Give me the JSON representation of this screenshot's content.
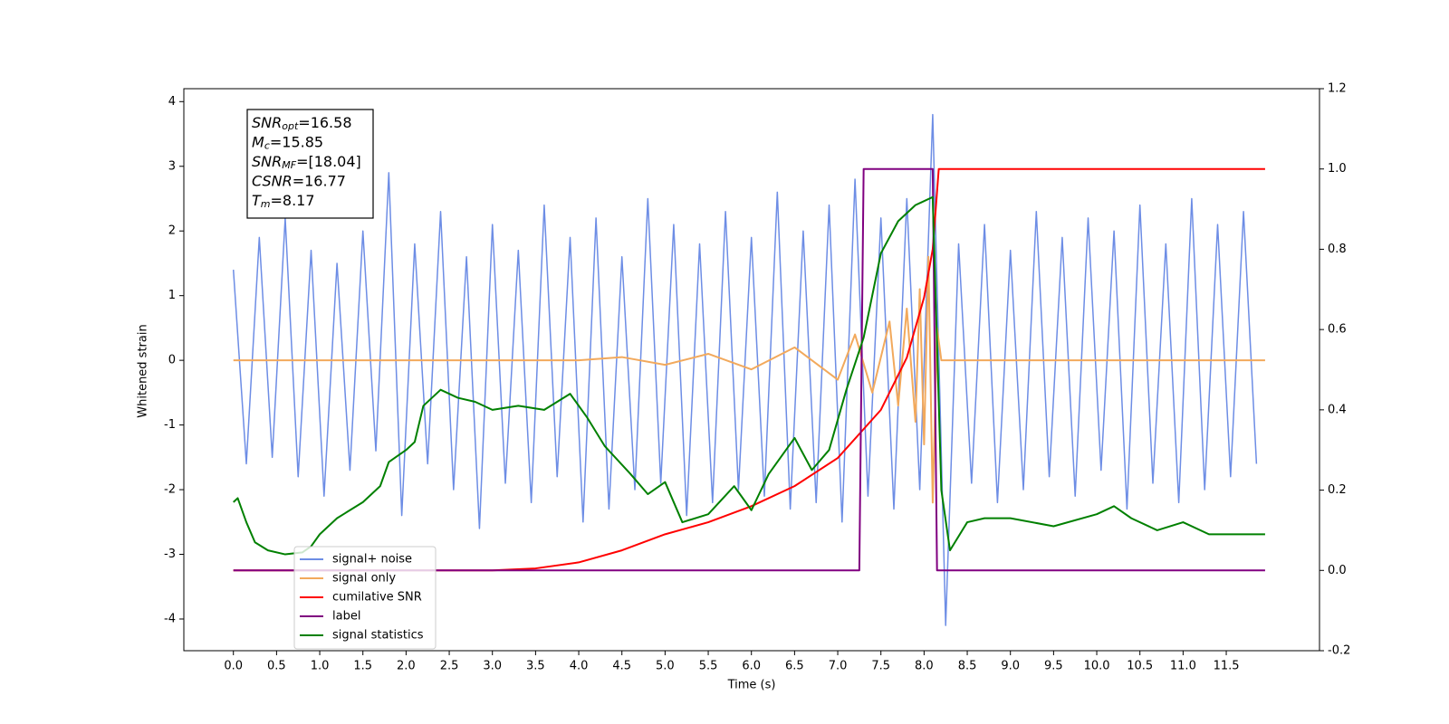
{
  "chart_data": {
    "type": "line",
    "xlabel": "Time (s)",
    "ylabel": "Whitened strain",
    "xlim": [
      -0.574,
      12.58
    ],
    "ylim": [
      -4.49,
      4.2
    ],
    "y2lim": [
      -0.2,
      1.2
    ],
    "xticks": [
      {
        "value": 0,
        "label": "0.0"
      },
      0.5,
      {
        "value": 1,
        "label": "1.0"
      },
      1.5,
      {
        "value": 2,
        "label": "2.0"
      },
      2.5,
      {
        "value": 3,
        "label": "3.0"
      },
      3.5,
      {
        "value": 4,
        "label": "4.0"
      },
      4.5,
      {
        "value": 5,
        "label": "5.0"
      },
      5.5,
      {
        "value": 6,
        "label": "6.0"
      },
      6.5,
      {
        "value": 7,
        "label": "7.0"
      },
      7.5,
      {
        "value": 8,
        "label": "8.0"
      },
      8.5,
      {
        "value": 9,
        "label": "9.0"
      },
      9.5,
      {
        "value": 10,
        "label": "10.0"
      },
      10.5,
      {
        "value": 11,
        "label": "11.0"
      },
      11.5
    ],
    "yticks": [
      -4,
      -3,
      -2,
      -1,
      0,
      1,
      2,
      3,
      4
    ],
    "y2ticks": [
      -0.2,
      {
        "value": 0,
        "label": "0.0"
      },
      0.2,
      0.4,
      0.6,
      0.8,
      {
        "value": 1,
        "label": "1.0"
      },
      1.2
    ],
    "legend_loc": "lower left",
    "annotations": [
      {
        "symbol": "SNR",
        "subscript": "opt",
        "text": "=16.58"
      },
      {
        "symbol": "M",
        "subscript": "c",
        "text": "=15.85"
      },
      {
        "symbol": "SNR",
        "subscript": "MF",
        "text": "=[18.04]"
      },
      {
        "symbol": "CSNR",
        "text": "=16.77"
      },
      {
        "symbol": "T",
        "subscript": "m",
        "text": "=8.17"
      }
    ],
    "series": [
      {
        "name": "signal+ noise",
        "color": "#6d8de5",
        "x": [
          0,
          0.15,
          0.3,
          0.45,
          0.6,
          0.75,
          0.9,
          1.05,
          1.2,
          1.35,
          1.5,
          1.65,
          1.8,
          1.95,
          2.1,
          2.25,
          2.4,
          2.55,
          2.7,
          2.85,
          3,
          3.15,
          3.3,
          3.45,
          3.6,
          3.75,
          3.9,
          4.05,
          4.2,
          4.35,
          4.5,
          4.65,
          4.8,
          4.95,
          5.1,
          5.25,
          5.4,
          5.55,
          5.7,
          5.85,
          6,
          6.15,
          6.3,
          6.45,
          6.6,
          6.75,
          6.9,
          7.05,
          7.2,
          7.35,
          7.5,
          7.65,
          7.8,
          7.95,
          8.1,
          8.25,
          8.4,
          8.55,
          8.7,
          8.85,
          9,
          9.15,
          9.3,
          9.45,
          9.6,
          9.75,
          9.9,
          10.05,
          10.2,
          10.35,
          10.5,
          10.65,
          10.8,
          10.95,
          11.1,
          11.25,
          11.4,
          11.55,
          11.7,
          11.85
        ],
        "values": [
          1.4,
          -1.6,
          1.9,
          -1.5,
          2.2,
          -1.8,
          1.7,
          -2.1,
          1.5,
          -1.7,
          2.0,
          -1.4,
          2.9,
          -2.4,
          1.8,
          -1.6,
          2.3,
          -2.0,
          1.6,
          -2.6,
          2.1,
          -1.9,
          1.7,
          -2.2,
          2.4,
          -1.8,
          1.9,
          -2.5,
          2.2,
          -2.3,
          1.6,
          -2.0,
          2.5,
          -1.9,
          2.1,
          -2.4,
          1.8,
          -2.2,
          2.3,
          -2.0,
          1.9,
          -2.1,
          2.6,
          -2.3,
          2.0,
          -2.2,
          2.4,
          -2.5,
          2.8,
          -2.1,
          2.2,
          -2.3,
          2.5,
          -2.0,
          3.8,
          -4.1,
          1.8,
          -1.9,
          2.1,
          -2.2,
          1.7,
          -2.0,
          2.3,
          -1.8,
          1.9,
          -2.1,
          2.2,
          -1.7,
          2.0,
          -2.3,
          2.4,
          -1.9,
          1.8,
          -2.2,
          2.5,
          -2.0,
          2.1,
          -1.8,
          2.3,
          -1.6
        ]
      },
      {
        "name": "signal only",
        "color": "#f2a95c",
        "x": [
          0,
          4.0,
          4.5,
          5.0,
          5.5,
          6.0,
          6.5,
          7.0,
          7.2,
          7.4,
          7.6,
          7.7,
          7.8,
          7.9,
          7.95,
          8.0,
          8.05,
          8.1,
          8.15,
          8.2,
          11.95
        ],
        "values": [
          0,
          0,
          0.05,
          -0.07,
          0.1,
          -0.14,
          0.2,
          -0.3,
          0.4,
          -0.5,
          0.6,
          -0.7,
          0.8,
          -0.95,
          1.1,
          -1.3,
          1.6,
          -2.2,
          0.5,
          0,
          0
        ]
      },
      {
        "name": "cumilative SNR",
        "color": "#ff0000",
        "axis": "y2",
        "x": [
          0,
          3.0,
          3.5,
          4.0,
          4.5,
          5.0,
          5.5,
          6.0,
          6.5,
          7.0,
          7.5,
          7.8,
          8.0,
          8.1,
          8.17,
          8.2,
          11.95
        ],
        "values": [
          0,
          0,
          0.005,
          0.02,
          0.05,
          0.09,
          0.12,
          0.16,
          0.21,
          0.28,
          0.4,
          0.53,
          0.68,
          0.8,
          1.0,
          1.0,
          1.0
        ]
      },
      {
        "name": "label",
        "color": "#800080",
        "axis": "y2",
        "x": [
          0,
          7.25,
          7.3,
          8.1,
          8.15,
          11.95
        ],
        "values": [
          0,
          0,
          1,
          1,
          0,
          0
        ]
      },
      {
        "name": "signal statistics",
        "color": "#008000",
        "axis": "y2",
        "x": [
          0,
          0.05,
          0.15,
          0.25,
          0.4,
          0.6,
          0.8,
          0.9,
          1.0,
          1.2,
          1.5,
          1.7,
          1.8,
          2.0,
          2.1,
          2.2,
          2.4,
          2.6,
          2.8,
          3.0,
          3.3,
          3.6,
          3.9,
          4.1,
          4.3,
          4.6,
          4.8,
          5.0,
          5.2,
          5.5,
          5.8,
          6.0,
          6.2,
          6.5,
          6.7,
          6.9,
          7.1,
          7.3,
          7.5,
          7.7,
          7.9,
          8.1,
          8.2,
          8.3,
          8.5,
          8.7,
          9.0,
          9.5,
          10.0,
          10.2,
          10.4,
          10.7,
          11.0,
          11.3,
          11.7,
          11.95
        ],
        "values": [
          0.17,
          0.18,
          0.12,
          0.07,
          0.05,
          0.04,
          0.045,
          0.06,
          0.09,
          0.13,
          0.17,
          0.21,
          0.27,
          0.3,
          0.32,
          0.41,
          0.45,
          0.43,
          0.42,
          0.4,
          0.41,
          0.4,
          0.44,
          0.38,
          0.31,
          0.24,
          0.19,
          0.22,
          0.12,
          0.14,
          0.21,
          0.15,
          0.24,
          0.33,
          0.25,
          0.3,
          0.45,
          0.58,
          0.79,
          0.87,
          0.91,
          0.93,
          0.2,
          0.05,
          0.12,
          0.13,
          0.13,
          0.11,
          0.14,
          0.16,
          0.13,
          0.1,
          0.12,
          0.09,
          0.09,
          0.09
        ]
      }
    ]
  }
}
